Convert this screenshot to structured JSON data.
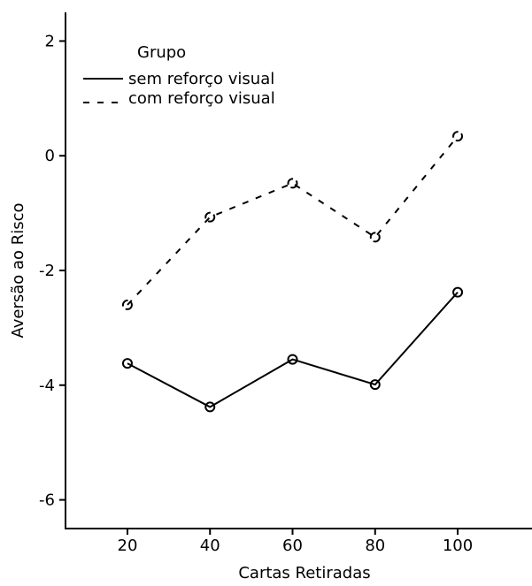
{
  "chart_data": {
    "type": "line",
    "title": "",
    "xlabel": "Cartas Retiradas",
    "ylabel": "Aversão ao Risco",
    "x": [
      20,
      40,
      60,
      80,
      100
    ],
    "xlim": [
      5,
      118
    ],
    "ylim": [
      -6.5,
      2.5
    ],
    "xticks": [
      20,
      40,
      60,
      80,
      100
    ],
    "yticks": [
      -6,
      -4,
      -2,
      0,
      2
    ],
    "legend": {
      "title": "Grupo",
      "placement": "top-left"
    },
    "series": [
      {
        "name": "sem reforço visual",
        "line_style": "solid",
        "values": [
          -3.62,
          -4.38,
          -3.55,
          -3.99,
          -2.38
        ]
      },
      {
        "name": "com reforço visual",
        "line_style": "dashed",
        "values": [
          -2.6,
          -1.07,
          -0.48,
          -1.42,
          0.34
        ]
      }
    ],
    "colors": {
      "line": "#000000"
    }
  }
}
